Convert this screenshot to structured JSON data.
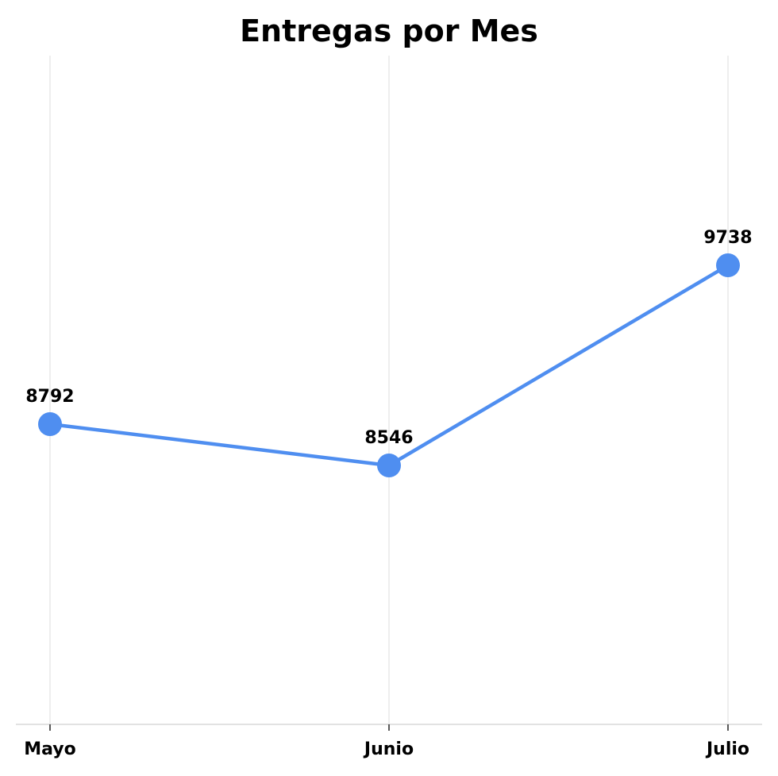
{
  "chart_data": {
    "type": "line",
    "title": "Entregas por Mes",
    "xlabel": "",
    "ylabel": "",
    "categories": [
      "Mayo",
      "Junio",
      "Julio"
    ],
    "series": [
      {
        "values": [
          8792,
          8546,
          9738
        ],
        "color": "#4f8ef0"
      }
    ],
    "ylim": [
      7000,
      10500
    ],
    "grid": {
      "vertical": true,
      "horizontal": false
    },
    "data_labels": true,
    "legend": "none"
  }
}
